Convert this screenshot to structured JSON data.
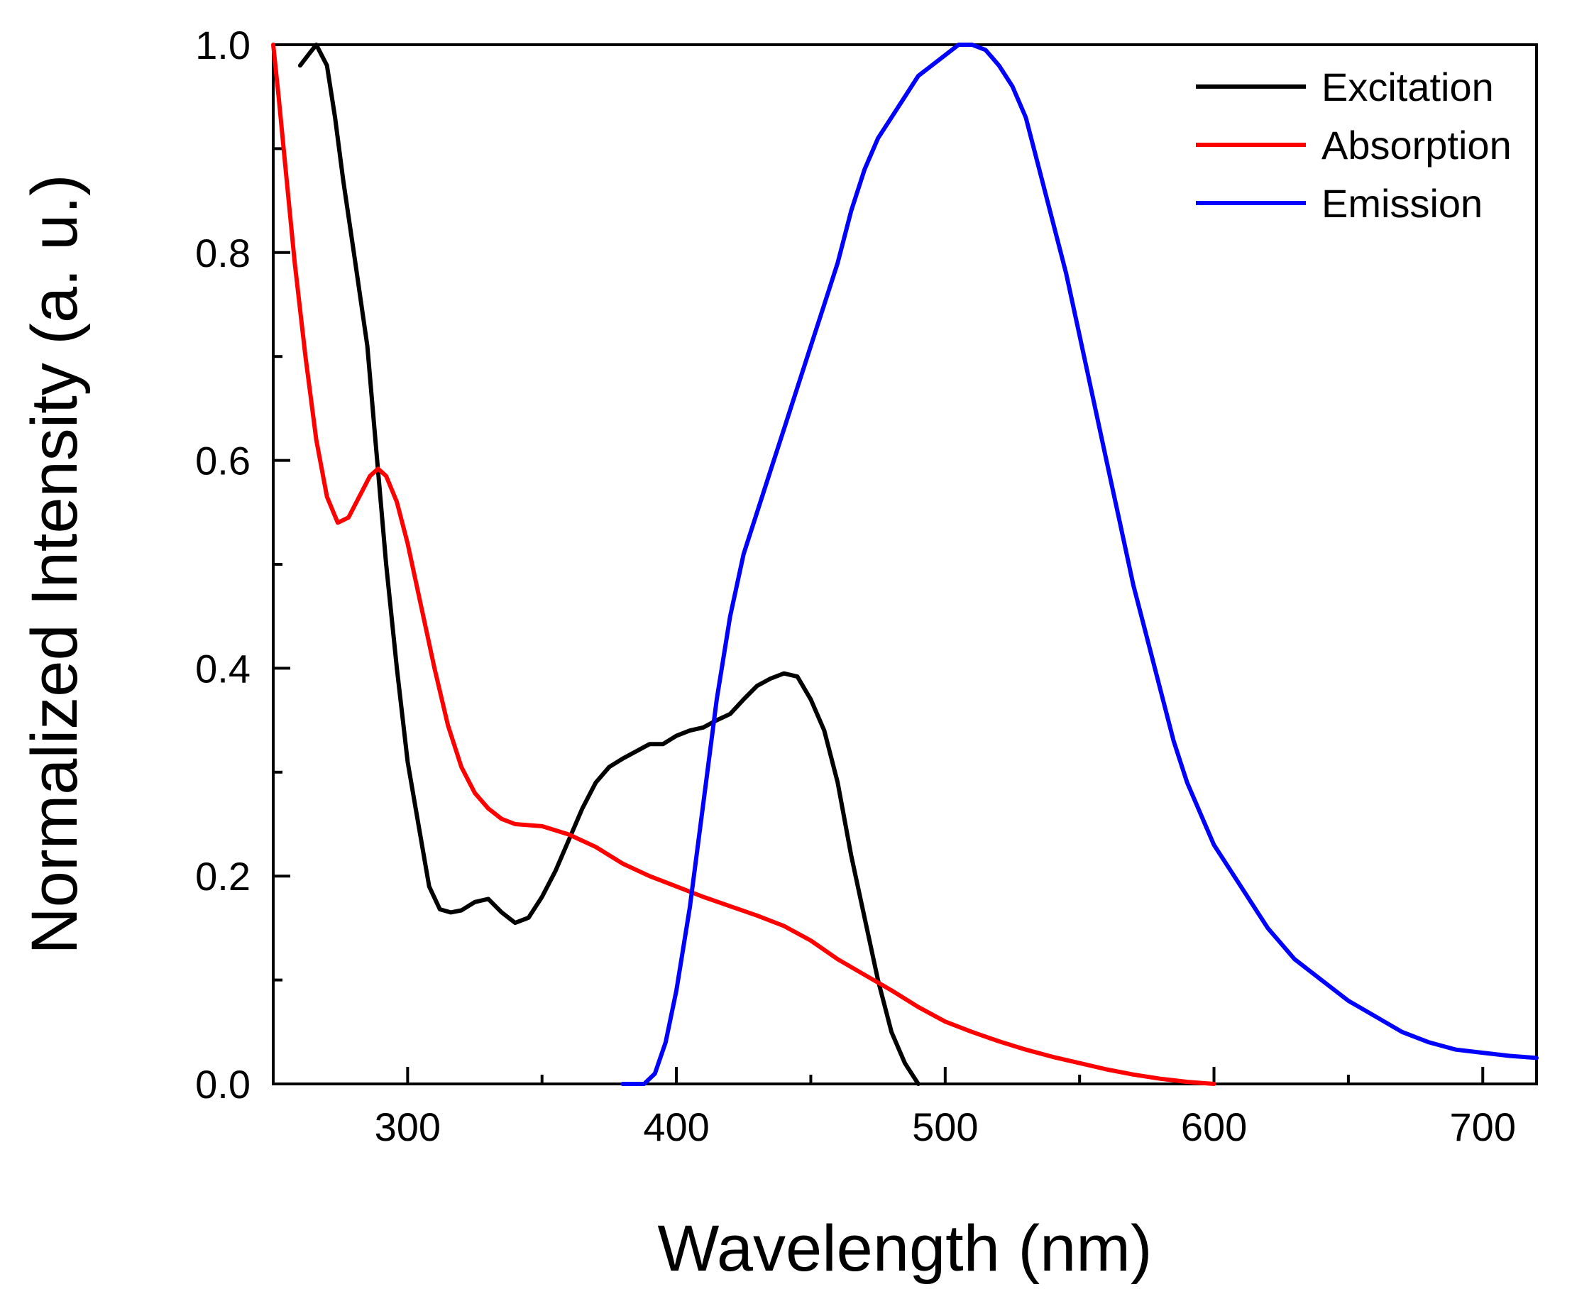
{
  "chart_data": {
    "type": "line",
    "title": "",
    "xlabel": "Wavelength (nm)",
    "ylabel": "Normalized Intensity (a. u.)",
    "xlim": [
      250,
      720
    ],
    "ylim": [
      0.0,
      1.0
    ],
    "grid": false,
    "legend_position": "top-right",
    "x_ticks": [
      300,
      400,
      500,
      600,
      700
    ],
    "x_tick_labels": [
      "300",
      "400",
      "500",
      "600",
      "700"
    ],
    "x_minor_ticks": [
      250,
      350,
      450,
      550,
      650
    ],
    "y_ticks": [
      0.0,
      0.2,
      0.4,
      0.6,
      0.8,
      1.0
    ],
    "y_tick_labels": [
      "0.0",
      "0.2",
      "0.4",
      "0.6",
      "0.8",
      "1.0"
    ],
    "y_minor_ticks": [
      0.1,
      0.3,
      0.5,
      0.7,
      0.9
    ],
    "series": [
      {
        "name": "Excitation",
        "color": "#000000",
        "points": [
          [
            260,
            0.98
          ],
          [
            263,
            0.99
          ],
          [
            266,
            1.0
          ],
          [
            270,
            0.98
          ],
          [
            273,
            0.93
          ],
          [
            276,
            0.87
          ],
          [
            280,
            0.8
          ],
          [
            285,
            0.71
          ],
          [
            288,
            0.62
          ],
          [
            292,
            0.5
          ],
          [
            296,
            0.4
          ],
          [
            300,
            0.31
          ],
          [
            304,
            0.25
          ],
          [
            308,
            0.19
          ],
          [
            312,
            0.168
          ],
          [
            316,
            0.165
          ],
          [
            320,
            0.167
          ],
          [
            325,
            0.175
          ],
          [
            330,
            0.178
          ],
          [
            335,
            0.165
          ],
          [
            340,
            0.155
          ],
          [
            345,
            0.16
          ],
          [
            350,
            0.18
          ],
          [
            355,
            0.205
          ],
          [
            360,
            0.235
          ],
          [
            365,
            0.265
          ],
          [
            370,
            0.29
          ],
          [
            375,
            0.305
          ],
          [
            380,
            0.313
          ],
          [
            385,
            0.32
          ],
          [
            390,
            0.327
          ],
          [
            395,
            0.327
          ],
          [
            400,
            0.335
          ],
          [
            405,
            0.34
          ],
          [
            410,
            0.343
          ],
          [
            415,
            0.35
          ],
          [
            420,
            0.356
          ],
          [
            425,
            0.37
          ],
          [
            430,
            0.383
          ],
          [
            435,
            0.39
          ],
          [
            440,
            0.395
          ],
          [
            445,
            0.392
          ],
          [
            450,
            0.37
          ],
          [
            455,
            0.34
          ],
          [
            460,
            0.29
          ],
          [
            465,
            0.22
          ],
          [
            470,
            0.16
          ],
          [
            475,
            0.1
          ],
          [
            480,
            0.05
          ],
          [
            485,
            0.02
          ],
          [
            490,
            0.0
          ]
        ]
      },
      {
        "name": "Absorption",
        "color": "#ff0000",
        "points": [
          [
            250,
            1.0
          ],
          [
            252,
            0.95
          ],
          [
            255,
            0.87
          ],
          [
            258,
            0.79
          ],
          [
            262,
            0.7
          ],
          [
            266,
            0.62
          ],
          [
            270,
            0.565
          ],
          [
            274,
            0.54
          ],
          [
            278,
            0.545
          ],
          [
            282,
            0.565
          ],
          [
            286,
            0.585
          ],
          [
            289,
            0.592
          ],
          [
            292,
            0.585
          ],
          [
            296,
            0.56
          ],
          [
            300,
            0.52
          ],
          [
            305,
            0.46
          ],
          [
            310,
            0.4
          ],
          [
            315,
            0.345
          ],
          [
            320,
            0.305
          ],
          [
            325,
            0.28
          ],
          [
            330,
            0.265
          ],
          [
            335,
            0.255
          ],
          [
            340,
            0.25
          ],
          [
            350,
            0.248
          ],
          [
            360,
            0.24
          ],
          [
            370,
            0.228
          ],
          [
            380,
            0.212
          ],
          [
            390,
            0.2
          ],
          [
            400,
            0.19
          ],
          [
            410,
            0.18
          ],
          [
            420,
            0.171
          ],
          [
            430,
            0.162
          ],
          [
            440,
            0.152
          ],
          [
            450,
            0.138
          ],
          [
            460,
            0.12
          ],
          [
            470,
            0.105
          ],
          [
            480,
            0.09
          ],
          [
            490,
            0.074
          ],
          [
            500,
            0.06
          ],
          [
            510,
            0.05
          ],
          [
            520,
            0.041
          ],
          [
            530,
            0.033
          ],
          [
            540,
            0.026
          ],
          [
            550,
            0.02
          ],
          [
            560,
            0.014
          ],
          [
            570,
            0.009
          ],
          [
            580,
            0.005
          ],
          [
            590,
            0.002
          ],
          [
            600,
            0.0
          ]
        ]
      },
      {
        "name": "Emission",
        "color": "#0000ff",
        "points": [
          [
            380,
            0.0
          ],
          [
            388,
            0.0
          ],
          [
            392,
            0.01
          ],
          [
            396,
            0.04
          ],
          [
            400,
            0.09
          ],
          [
            405,
            0.17
          ],
          [
            410,
            0.27
          ],
          [
            415,
            0.37
          ],
          [
            420,
            0.45
          ],
          [
            425,
            0.51
          ],
          [
            430,
            0.55
          ],
          [
            435,
            0.59
          ],
          [
            440,
            0.63
          ],
          [
            445,
            0.67
          ],
          [
            450,
            0.71
          ],
          [
            455,
            0.75
          ],
          [
            460,
            0.79
          ],
          [
            465,
            0.84
          ],
          [
            470,
            0.88
          ],
          [
            475,
            0.91
          ],
          [
            480,
            0.93
          ],
          [
            485,
            0.95
          ],
          [
            490,
            0.97
          ],
          [
            495,
            0.98
          ],
          [
            500,
            0.99
          ],
          [
            505,
            1.0
          ],
          [
            510,
            1.0
          ],
          [
            515,
            0.995
          ],
          [
            520,
            0.98
          ],
          [
            525,
            0.96
          ],
          [
            530,
            0.93
          ],
          [
            535,
            0.88
          ],
          [
            540,
            0.83
          ],
          [
            545,
            0.78
          ],
          [
            550,
            0.72
          ],
          [
            555,
            0.66
          ],
          [
            560,
            0.6
          ],
          [
            565,
            0.54
          ],
          [
            570,
            0.48
          ],
          [
            575,
            0.43
          ],
          [
            580,
            0.38
          ],
          [
            585,
            0.33
          ],
          [
            590,
            0.29
          ],
          [
            595,
            0.26
          ],
          [
            600,
            0.23
          ],
          [
            610,
            0.19
          ],
          [
            620,
            0.15
          ],
          [
            630,
            0.12
          ],
          [
            640,
            0.1
          ],
          [
            650,
            0.08
          ],
          [
            660,
            0.065
          ],
          [
            670,
            0.05
          ],
          [
            680,
            0.04
          ],
          [
            690,
            0.033
          ],
          [
            700,
            0.03
          ],
          [
            710,
            0.027
          ],
          [
            720,
            0.025
          ]
        ]
      }
    ]
  }
}
